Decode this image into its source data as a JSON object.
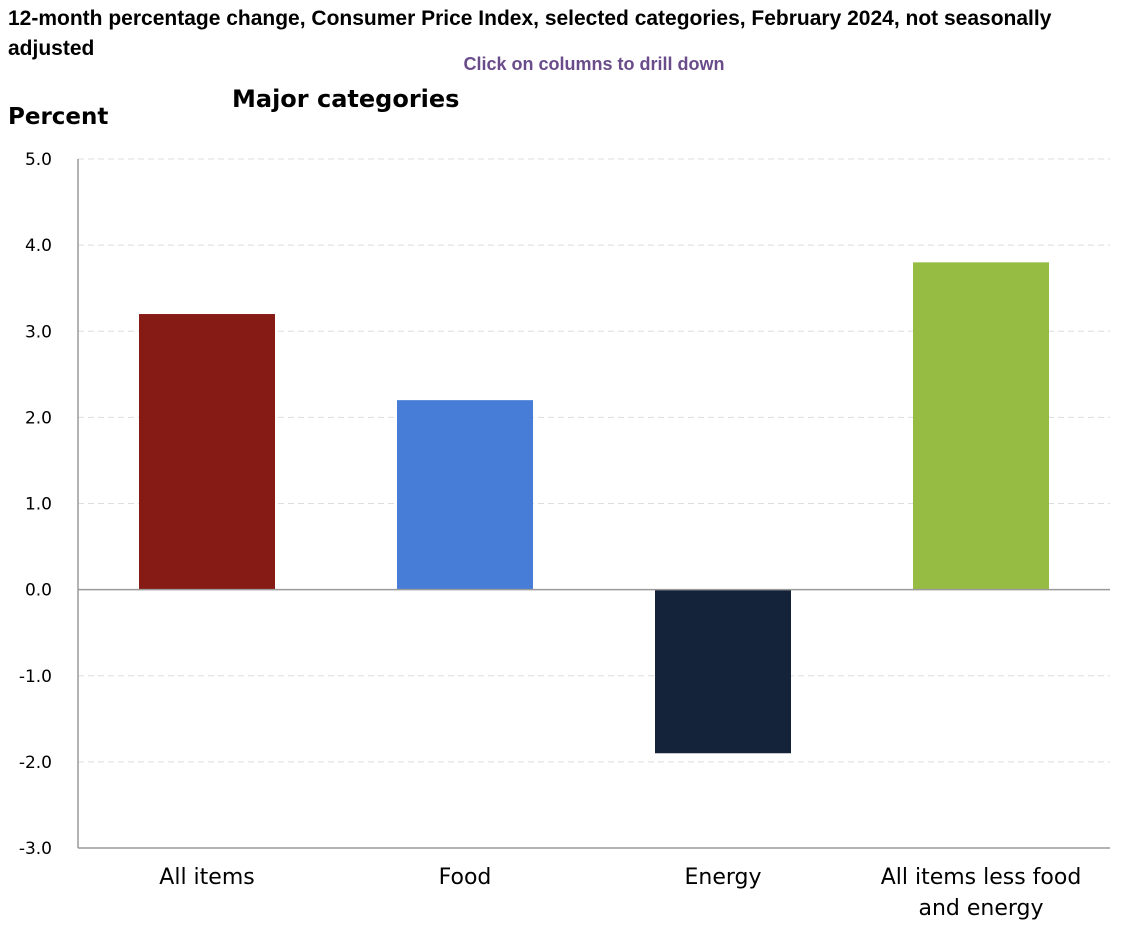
{
  "header": {
    "title": "12-month percentage change, Consumer Price Index, selected categories, February 2024, not seasonally adjusted",
    "drill_hint": "Click on columns to drill down"
  },
  "chart_data": {
    "type": "bar",
    "title": "Major categories",
    "ylabel": "Percent",
    "xlabel": "",
    "ylim": [
      -3.0,
      5.0
    ],
    "yticks": [
      "5.0",
      "4.0",
      "3.0",
      "2.0",
      "1.0",
      "0.0",
      "-1.0",
      "-2.0",
      "-3.0"
    ],
    "ytick_values": [
      5,
      4,
      3,
      2,
      1,
      0,
      -1,
      -2,
      -3
    ],
    "grid": true,
    "categories": [
      [
        "All items"
      ],
      [
        "Food"
      ],
      [
        "Energy"
      ],
      [
        "All items less food",
        "and energy"
      ]
    ],
    "values": [
      3.2,
      2.2,
      -1.9,
      3.8
    ],
    "colors": [
      "#861a14",
      "#477dd6",
      "#15233a",
      "#96bc44"
    ]
  }
}
